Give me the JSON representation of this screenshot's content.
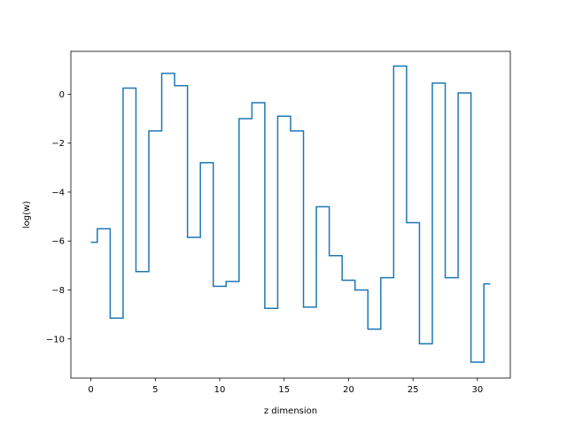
{
  "chart_data": {
    "type": "line",
    "drawstyle": "steps-mid",
    "title": "",
    "xlabel": "z dimension",
    "ylabel": "log(w)",
    "xlim": [
      -1.55,
      32.55
    ],
    "ylim": [
      -11.6,
      1.75
    ],
    "xticks": [
      0,
      5,
      10,
      15,
      20,
      25,
      30
    ],
    "yticks": [
      -10,
      -8,
      -6,
      -4,
      -2,
      0
    ],
    "ytick_labels": [
      "−10",
      "−8",
      "−6",
      "−4",
      "−2",
      "0"
    ],
    "grid": false,
    "legend": "none",
    "series": [
      {
        "color": "#1f77b4",
        "x": [
          0,
          1,
          2,
          3,
          4,
          5,
          6,
          7,
          8,
          9,
          10,
          11,
          12,
          13,
          14,
          15,
          16,
          17,
          18,
          19,
          20,
          21,
          22,
          23,
          24,
          25,
          26,
          27,
          28,
          29,
          30,
          31
        ],
        "y": [
          -6.05,
          -5.5,
          -9.15,
          0.25,
          -7.25,
          -1.5,
          0.85,
          0.35,
          -5.85,
          -2.8,
          -7.85,
          -7.65,
          -1.0,
          -0.35,
          -8.75,
          -0.9,
          -1.5,
          -8.7,
          -4.6,
          -6.6,
          -7.6,
          -8.0,
          -9.6,
          -7.5,
          1.15,
          -5.25,
          -10.2,
          0.45,
          -7.5,
          0.05,
          -10.95,
          -7.75
        ]
      }
    ]
  }
}
